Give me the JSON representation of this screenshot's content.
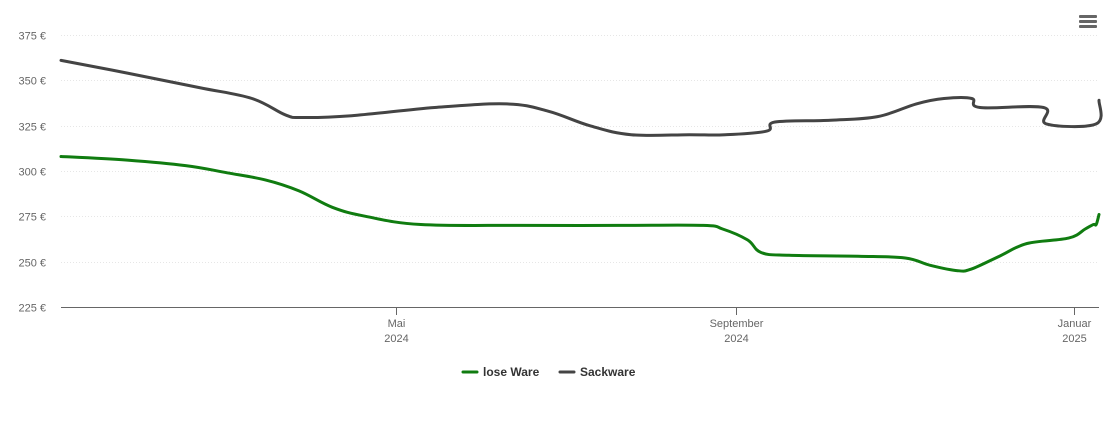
{
  "menu_icon": "hamburger-menu-icon",
  "colors": {
    "lose_ware": "#107c10",
    "sackware": "#444444",
    "grid": "#e6e6e6",
    "axis": "#666666",
    "text": "#666666"
  },
  "chart_data": {
    "type": "line",
    "title": "",
    "xlabel": "",
    "ylabel": "",
    "ylim": [
      225,
      375
    ],
    "xlim": [
      "2024-01-01",
      "2025-01-10"
    ],
    "y_ticks": [
      "225 €",
      "250 €",
      "275 €",
      "300 €",
      "325 €",
      "350 €",
      "375 €"
    ],
    "y_tick_values": [
      225,
      250,
      275,
      300,
      325,
      350,
      375
    ],
    "x_ticks": [
      {
        "date": "2024-05-01",
        "line1": "Mai",
        "line2": "2024"
      },
      {
        "date": "2024-09-01",
        "line1": "September",
        "line2": "2024"
      },
      {
        "date": "2025-01-01",
        "line1": "Januar",
        "line2": "2025"
      }
    ],
    "grid": true,
    "legend_position": "bottom-center",
    "series": [
      {
        "name": "lose Ware",
        "color": "#107c10",
        "points": [
          [
            "2024-01-01",
            308
          ],
          [
            "2024-01-25",
            306
          ],
          [
            "2024-02-15",
            303
          ],
          [
            "2024-03-01",
            299
          ],
          [
            "2024-03-15",
            295
          ],
          [
            "2024-03-27",
            289
          ],
          [
            "2024-04-08",
            280
          ],
          [
            "2024-04-20",
            275
          ],
          [
            "2024-05-10",
            270.5
          ],
          [
            "2024-06-15",
            270
          ],
          [
            "2024-07-20",
            270
          ],
          [
            "2024-08-20",
            270
          ],
          [
            "2024-08-27",
            268
          ],
          [
            "2024-09-05",
            262
          ],
          [
            "2024-09-10",
            255
          ],
          [
            "2024-09-20",
            253.5
          ],
          [
            "2024-10-15",
            253
          ],
          [
            "2024-11-01",
            252
          ],
          [
            "2024-11-10",
            248
          ],
          [
            "2024-11-20",
            245
          ],
          [
            "2024-11-25",
            246
          ],
          [
            "2024-12-05",
            253
          ],
          [
            "2024-12-15",
            260
          ],
          [
            "2024-12-30",
            263
          ],
          [
            "2025-01-05",
            268
          ],
          [
            "2025-01-08",
            270.5
          ],
          [
            "2025-01-09",
            270.5
          ],
          [
            "2025-01-10",
            276
          ]
        ]
      },
      {
        "name": "Sackware",
        "color": "#444444",
        "points": [
          [
            "2024-01-01",
            361
          ],
          [
            "2024-01-25",
            354
          ],
          [
            "2024-02-20",
            346
          ],
          [
            "2024-03-10",
            340
          ],
          [
            "2024-03-22",
            331
          ],
          [
            "2024-03-28",
            329.5
          ],
          [
            "2024-04-15",
            330.5
          ],
          [
            "2024-05-15",
            335
          ],
          [
            "2024-06-10",
            337
          ],
          [
            "2024-06-25",
            333
          ],
          [
            "2024-07-10",
            325
          ],
          [
            "2024-07-25",
            320
          ],
          [
            "2024-08-15",
            320
          ],
          [
            "2024-08-28",
            320
          ],
          [
            "2024-09-12",
            322
          ],
          [
            "2024-09-15",
            327
          ],
          [
            "2024-10-05",
            328
          ],
          [
            "2024-10-22",
            330
          ],
          [
            "2024-11-05",
            337
          ],
          [
            "2024-11-15",
            340
          ],
          [
            "2024-11-25",
            340
          ],
          [
            "2024-11-28",
            335
          ],
          [
            "2024-12-21",
            335
          ],
          [
            "2024-12-22",
            326
          ],
          [
            "2025-01-09",
            326
          ],
          [
            "2025-01-10",
            339
          ]
        ]
      }
    ]
  }
}
